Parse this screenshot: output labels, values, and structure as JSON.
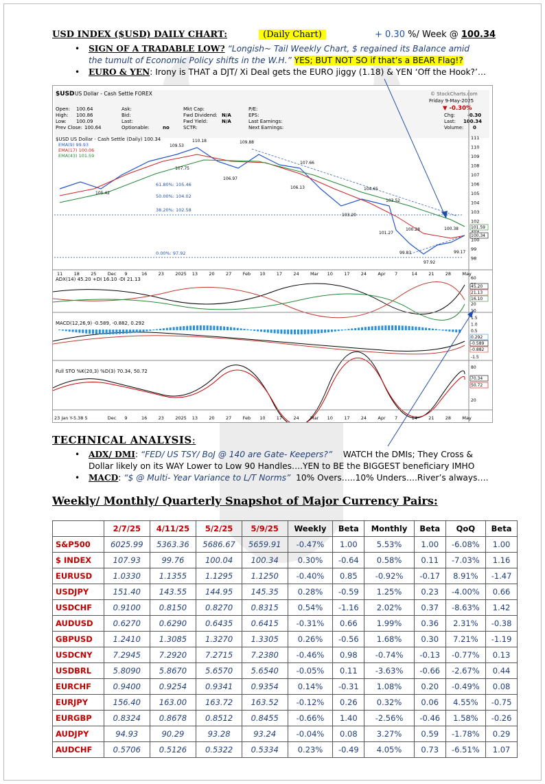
{
  "header": {
    "title": "USD INDEX ($USD) DAILY CHART:",
    "highlight": "(Daily Chart)",
    "weekly_change": "+ 0.30",
    "weekly_suffix": "%/ Week @",
    "weekly_level": "100.34"
  },
  "bullets": [
    {
      "head": "SIGN OF A TRADABLE LOW?",
      "italic1": "“Longish~ Tail Weekly Chart, $ regained its Balance amid",
      "italic2": "the tumult of Economic Policy shifts in the W.H.”",
      "highlight": "YES; BUT NOT SO if that’s a BEAR Flag!?"
    },
    {
      "head": "EURO & YEN",
      "text": ": Irony is THAT a DJT/ Xi Deal gets the EURO jiggy (1.18) & YEN ‘Off the Hook?’…"
    }
  ],
  "chart": {
    "symbol": "$USD",
    "name": "US Dollar - Cash Settle FOREX",
    "source": "© StockCharts.com",
    "date": "Friday 9-May-2025",
    "change_pct": "▼ -0.30%",
    "quote": {
      "open_label": "Open:",
      "open": "100.64",
      "high_label": "High:",
      "high": "100.86",
      "low_label": "Low:",
      "low": "100.09",
      "prev_label": "Prev Close:",
      "prev": "100.64",
      "chg_label": "Chg:",
      "chg": "-0.30",
      "last_label": "Last:",
      "last": "100.34",
      "vol_label": "Volume:",
      "vol": "0"
    },
    "fields": [
      "Ask:",
      "Bid:",
      "Last:",
      "Optionable:",
      "Mkt Cap:",
      "Fwd Dividend:",
      "Fwd Yield:",
      "SCTR:",
      "P/E:",
      "EPS:",
      "Last Earnings:",
      "Next Earnings:"
    ],
    "field_values": {
      "optionable": "no",
      "fwd_dividend": "N/A",
      "fwd_yield": "N/A"
    },
    "price_legend": "$USD US Dollar - Cash Settle (Daily) 100.34",
    "ema_legend": [
      "EMA(9) 99.93",
      "EMA(17) 100.06",
      "EMA(43) 101.59"
    ],
    "ema_colors": [
      "#2255cc",
      "#cc2222",
      "#228833"
    ],
    "adx_legend": "ADX(14) 45.20 +DI 16.10 -DI 21.13",
    "macd_legend": "MACD(12,26,9) -0.589, -0.882, 0.292",
    "sto_legend": "Full STO %K(20,3) %D(3) 70.34, 50.72",
    "x_labels": [
      "11",
      "18",
      "25",
      "Dec",
      "9",
      "16",
      "23",
      "2025",
      "13",
      "20",
      "27",
      "Feb",
      "10",
      "17",
      "24",
      "Mar",
      "10",
      "17",
      "24",
      "Apr",
      "7",
      "14",
      "21",
      "28",
      "May"
    ],
    "bottom_left": "23 Jan Y-5.38 5",
    "fib_labels": [
      "61.80%: 105.46",
      "50.00%: 104.02",
      "38.20%: 102.58",
      "0.00%: 97.92"
    ],
    "price_annotations": [
      "109.53",
      "110.18",
      "109.88",
      "107.75",
      "106.97",
      "105.42",
      "107.66",
      "106.13",
      "104.65",
      "103.52",
      "103.20",
      "101.27",
      "100.28",
      "100.38",
      "99.83",
      "99.17",
      "97.92"
    ],
    "price_axis": [
      "111",
      "110",
      "109",
      "108",
      "107",
      "106",
      "105",
      "104",
      "103",
      "102",
      "101",
      "100",
      "99",
      "98"
    ],
    "price_axis_tags": [
      "101.59",
      "100.34"
    ],
    "adx_axis": [
      "60",
      "50",
      "40",
      "30",
      "20",
      "10"
    ],
    "adx_axis_tags": [
      "45.20",
      "21.13",
      "16.10"
    ],
    "macd_axis": [
      "1.5",
      "1.0",
      "0.5",
      "0.0",
      "-0.5",
      "-1.0",
      "-1.5"
    ],
    "macd_axis_tags": [
      "0.292",
      "-0.589",
      "-0.882"
    ],
    "sto_axis": [
      "80",
      "20"
    ],
    "sto_axis_tags": [
      "70.34",
      "50.72"
    ]
  },
  "technical": {
    "title": "TECHNICAL ANALYSIS",
    "colon": ":",
    "items": [
      {
        "head": "ADX/ DMI",
        "italic": "“FED/ US TSY/ BoJ @ 140 are Gate- Keepers?”",
        "text1": "WATCH the DMIs; They Cross &",
        "text2": "Dollar likely on its WAY Lower to Low 90 Handles….YEN to BE the BIGGEST beneficiary IMHO"
      },
      {
        "head": "MACD",
        "italic": "“$ @ Multi- Year Variance to L/T Norms”",
        "text1": "10% Overs…..10% Unders….River’s always…."
      }
    ]
  },
  "snapshot": {
    "title": "Weekly/ Monthly/ Quarterly Snapshot of Major Currency Pairs:",
    "columns": [
      "",
      "2/7/25",
      "4/11/25",
      "5/2/25",
      "5/9/25",
      "Weekly",
      "Beta",
      "Monthly",
      "Beta",
      "QoQ",
      "Beta"
    ],
    "rows": [
      [
        "S&P500",
        "6025.99",
        "5363.36",
        "5686.67",
        "5659.91",
        "-0.47%",
        "1.00",
        "5.53%",
        "1.00",
        "-6.08%",
        "1.00"
      ],
      [
        "$ INDEX",
        "107.93",
        "99.76",
        "100.04",
        "100.34",
        "0.30%",
        "-0.64",
        "0.58%",
        "0.11",
        "-7.03%",
        "1.16"
      ],
      [
        "EURUSD",
        "1.0330",
        "1.1355",
        "1.1295",
        "1.1250",
        "-0.40%",
        "0.85",
        "-0.92%",
        "-0.17",
        "8.91%",
        "-1.47"
      ],
      [
        "USDJPY",
        "151.40",
        "143.55",
        "144.95",
        "145.35",
        "0.28%",
        "-0.59",
        "1.25%",
        "0.23",
        "-4.00%",
        "0.66"
      ],
      [
        "USDCHF",
        "0.9100",
        "0.8150",
        "0.8270",
        "0.8315",
        "0.54%",
        "-1.16",
        "2.02%",
        "0.37",
        "-8.63%",
        "1.42"
      ],
      [
        "AUDUSD",
        "0.6270",
        "0.6290",
        "0.6435",
        "0.6415",
        "-0.31%",
        "0.66",
        "1.99%",
        "0.36",
        "2.31%",
        "-0.38"
      ],
      [
        "GBPUSD",
        "1.2410",
        "1.3085",
        "1.3270",
        "1.3305",
        "0.26%",
        "-0.56",
        "1.68%",
        "0.30",
        "7.21%",
        "-1.19"
      ],
      [
        "USDCNY",
        "7.2945",
        "7.2920",
        "7.2715",
        "7.2380",
        "-0.46%",
        "0.98",
        "-0.74%",
        "-0.13",
        "-0.77%",
        "0.13"
      ],
      [
        "USDBRL",
        "5.8090",
        "5.8670",
        "5.6570",
        "5.6540",
        "-0.05%",
        "0.11",
        "-3.63%",
        "-0.66",
        "-2.67%",
        "0.44"
      ],
      [
        "EURCHF",
        "0.9400",
        "0.9254",
        "0.9341",
        "0.9354",
        "0.14%",
        "-0.31",
        "1.08%",
        "0.20",
        "-0.49%",
        "0.08"
      ],
      [
        "EURJPY",
        "156.40",
        "163.00",
        "163.72",
        "163.52",
        "-0.12%",
        "0.26",
        "0.32%",
        "0.06",
        "4.55%",
        "-0.75"
      ],
      [
        "EURGBP",
        "0.8324",
        "0.8678",
        "0.8512",
        "0.8455",
        "-0.66%",
        "1.40",
        "-2.56%",
        "-0.46",
        "1.58%",
        "-0.26"
      ],
      [
        "AUDJPY",
        "94.93",
        "90.29",
        "93.28",
        "93.24",
        "-0.04%",
        "0.08",
        "3.27%",
        "0.59",
        "-1.78%",
        "0.29"
      ],
      [
        "AUDCHF",
        "0.5706",
        "0.5126",
        "0.5322",
        "0.5334",
        "0.23%",
        "-0.49",
        "4.05%",
        "0.73",
        "-6.51%",
        "1.07"
      ]
    ]
  }
}
